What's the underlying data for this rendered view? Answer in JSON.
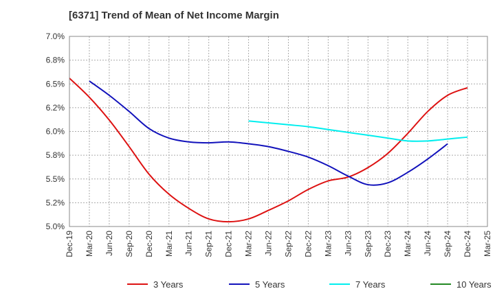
{
  "chart_data": {
    "type": "line",
    "title": "[6371]  Trend of Mean of Net Income Margin",
    "xlabel": "",
    "ylabel": "",
    "ylim": [
      5.0,
      7.0
    ],
    "y_ticks": [
      "7.0%",
      "6.8%",
      "6.5%",
      "6.2%",
      "6.0%",
      "5.8%",
      "5.5%",
      "5.2%",
      "5.0%"
    ],
    "y_tick_values": [
      7.0,
      6.75,
      6.5,
      6.25,
      6.0,
      5.75,
      5.5,
      5.25,
      5.0
    ],
    "x_ticks": [
      "Dec-19",
      "Mar-20",
      "Jun-20",
      "Sep-20",
      "Dec-20",
      "Mar-21",
      "Jun-21",
      "Sep-21",
      "Dec-21",
      "Mar-22",
      "Jun-22",
      "Sep-22",
      "Dec-22",
      "Mar-23",
      "Jun-23",
      "Sep-23",
      "Dec-23",
      "Mar-24",
      "Jun-24",
      "Sep-24",
      "Dec-24",
      "Mar-25"
    ],
    "grid": true,
    "legend_position": "bottom",
    "series": [
      {
        "name": "3 Years",
        "color": "#dd1111",
        "start_index": 0,
        "values": [
          6.56,
          6.36,
          6.12,
          5.84,
          5.55,
          5.34,
          5.19,
          5.08,
          5.05,
          5.08,
          5.17,
          5.27,
          5.39,
          5.48,
          5.52,
          5.62,
          5.77,
          5.98,
          6.21,
          6.38,
          6.46
        ]
      },
      {
        "name": "5 Years",
        "color": "#1111bb",
        "start_index": 1,
        "values": [
          6.53,
          6.38,
          6.21,
          6.03,
          5.93,
          5.89,
          5.88,
          5.89,
          5.87,
          5.84,
          5.79,
          5.73,
          5.64,
          5.53,
          5.44,
          5.46,
          5.57,
          5.71,
          5.87
        ]
      },
      {
        "name": "7 Years",
        "color": "#00eeee",
        "start_index": 9,
        "values": [
          6.11,
          6.09,
          6.07,
          6.05,
          6.02,
          5.99,
          5.96,
          5.93,
          5.9,
          5.9,
          5.92,
          5.94
        ]
      },
      {
        "name": "10 Years",
        "color": "#228822",
        "start_index": 0,
        "values": []
      }
    ]
  }
}
